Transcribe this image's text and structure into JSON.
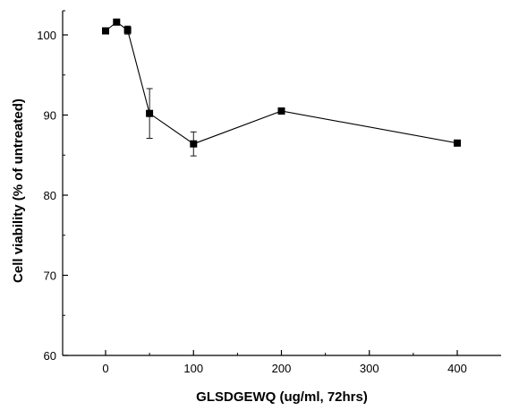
{
  "chart_data": {
    "type": "line",
    "title": "",
    "xlabel": "GLSDGEWQ (ug/ml, 72hrs)",
    "ylabel": "Cell viability (% of untreated)",
    "x_ticks": [
      0,
      100,
      200,
      300,
      400
    ],
    "y_ticks": [
      60,
      70,
      80,
      90,
      100
    ],
    "ylim": [
      60,
      102
    ],
    "grid": false,
    "legend": "none",
    "series": [
      {
        "marker": "square",
        "color": "#000000",
        "points": [
          {
            "x": 0,
            "y": 100.5,
            "err": 0
          },
          {
            "x": 12.5,
            "y": 101.6,
            "err": 0.3
          },
          {
            "x": 25,
            "y": 100.6,
            "err": 0.5
          },
          {
            "x": 50,
            "y": 90.2,
            "err": 3.1
          },
          {
            "x": 100,
            "y": 86.4,
            "err": 1.5
          },
          {
            "x": 200,
            "y": 90.5,
            "err": 0
          },
          {
            "x": 400,
            "y": 86.5,
            "err": 0
          }
        ]
      }
    ]
  }
}
